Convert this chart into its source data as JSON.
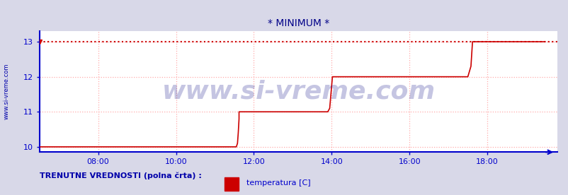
{
  "title": "* MINIMUM *",
  "title_color": "#000088",
  "bg_color": "#d8d8e8",
  "plot_bg_color": "#ffffff",
  "grid_color": "#ffaaaa",
  "grid_style": ":",
  "ylim": [
    9.85,
    13.3
  ],
  "yticks": [
    10,
    11,
    12,
    13
  ],
  "xlim_hours": [
    6.5,
    19.8
  ],
  "xticks_hours": [
    8,
    10,
    12,
    14,
    16,
    18
  ],
  "xtick_labels": [
    "08:00",
    "10:00",
    "12:00",
    "14:00",
    "16:00",
    "18:00"
  ],
  "line_color": "#cc0000",
  "line_width": 1.2,
  "axis_color": "#0000cc",
  "tick_label_color": "#0000cc",
  "watermark_text": "www.si-vreme.com",
  "watermark_color": "#1a1a8c",
  "watermark_alpha": 0.25,
  "watermark_fontsize": 26,
  "left_label": "www.si-vreme.com",
  "left_label_color": "#0000aa",
  "legend_label": "temperatura [C]",
  "legend_color": "#cc0000",
  "bottom_text": "TRENUTNE VREDNOSTI (polna črta) :",
  "bottom_text_color": "#0000aa",
  "dotted_line_y": 13,
  "dotted_line_color": "#cc0000",
  "data_x": [
    6.5,
    7.0,
    7.5,
    8.0,
    8.5,
    9.0,
    9.5,
    10.0,
    10.5,
    11.0,
    11.5,
    11.55,
    11.58,
    11.6,
    11.62,
    11.62,
    12.0,
    12.5,
    13.0,
    13.5,
    13.9,
    13.95,
    14.02,
    14.02,
    14.5,
    15.0,
    15.5,
    16.0,
    16.5,
    17.0,
    17.5,
    17.58,
    17.62,
    17.62,
    18.0,
    18.5,
    19.0,
    19.5
  ],
  "data_y": [
    10.0,
    10.0,
    10.0,
    10.0,
    10.0,
    10.0,
    10.0,
    10.0,
    10.0,
    10.0,
    10.0,
    10.0,
    10.1,
    10.4,
    10.8,
    11.0,
    11.0,
    11.0,
    11.0,
    11.0,
    11.0,
    11.1,
    12.0,
    12.0,
    12.0,
    12.0,
    12.0,
    12.0,
    12.0,
    12.0,
    12.0,
    12.3,
    13.0,
    13.0,
    13.0,
    13.0,
    13.0,
    13.0
  ]
}
